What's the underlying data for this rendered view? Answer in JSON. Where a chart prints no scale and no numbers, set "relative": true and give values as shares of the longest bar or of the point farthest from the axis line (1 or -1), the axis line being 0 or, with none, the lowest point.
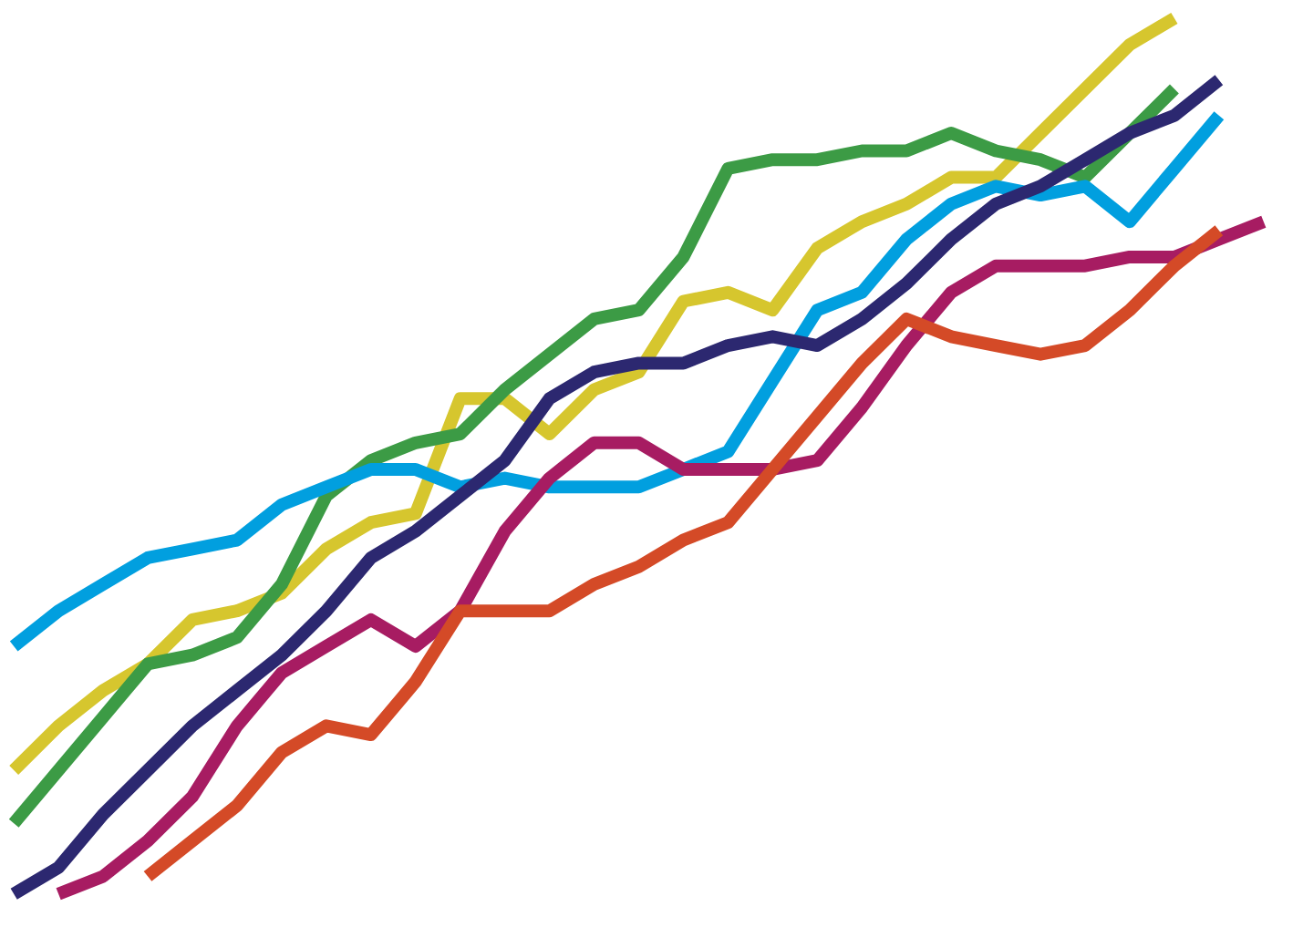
{
  "chart_data": {
    "type": "line",
    "relative": true,
    "grid": false,
    "line_style": "solid",
    "categories": [
      null,
      null,
      null,
      null,
      null,
      null,
      null,
      null,
      null,
      null,
      null,
      null,
      null,
      null,
      null,
      null,
      null,
      null,
      null,
      null,
      null,
      null,
      null,
      null,
      null,
      null,
      null,
      null,
      null
    ],
    "series": [
      {
        "color": "#d6c62e",
        "values": [
          0.15,
          0.2,
          0.24,
          0.27,
          0.32,
          0.33,
          0.35,
          0.4,
          0.43,
          0.44,
          0.57,
          0.57,
          0.53,
          0.58,
          0.6,
          0.68,
          0.69,
          0.67,
          0.74,
          0.77,
          0.79,
          0.82,
          0.82,
          0.87,
          0.92,
          0.97,
          1.0,
          null,
          null
        ]
      },
      {
        "color": "#3c9b45",
        "values": [
          0.09,
          0.15,
          0.21,
          0.27,
          0.28,
          0.3,
          0.36,
          0.46,
          0.5,
          0.52,
          0.53,
          0.58,
          0.62,
          0.66,
          0.67,
          0.73,
          0.83,
          0.84,
          0.84,
          0.85,
          0.85,
          0.87,
          0.85,
          0.84,
          0.82,
          0.87,
          0.92,
          null,
          null
        ]
      },
      {
        "color": "#019fdf",
        "values": [
          0.29,
          0.33,
          0.36,
          0.39,
          0.4,
          0.41,
          0.45,
          0.47,
          0.49,
          0.49,
          0.47,
          0.48,
          0.47,
          0.47,
          0.47,
          0.49,
          0.51,
          0.59,
          0.67,
          0.69,
          0.75,
          0.79,
          0.81,
          0.8,
          0.81,
          0.77,
          0.83,
          0.89,
          null
        ]
      },
      {
        "color": "#2c2870",
        "values": [
          0.01,
          0.04,
          0.1,
          0.15,
          0.2,
          0.24,
          0.28,
          0.33,
          0.39,
          0.42,
          0.46,
          0.5,
          0.57,
          0.6,
          0.61,
          0.61,
          0.63,
          0.64,
          0.63,
          0.66,
          0.7,
          0.75,
          0.79,
          0.81,
          0.84,
          0.87,
          0.89,
          0.93,
          null
        ]
      },
      {
        "color": "#a71c62",
        "values": [
          null,
          0.01,
          0.03,
          0.07,
          0.12,
          0.2,
          0.26,
          0.29,
          0.32,
          0.29,
          0.33,
          0.42,
          0.48,
          0.52,
          0.52,
          0.49,
          0.49,
          0.49,
          0.5,
          0.56,
          0.63,
          0.69,
          0.72,
          0.72,
          0.72,
          0.73,
          0.73,
          0.75,
          0.77
        ]
      },
      {
        "color": "#d44a27",
        "values": [
          null,
          null,
          null,
          0.03,
          0.07,
          0.11,
          0.17,
          0.2,
          0.19,
          0.25,
          0.33,
          0.33,
          0.33,
          0.36,
          0.38,
          0.41,
          0.43,
          0.49,
          0.55,
          0.61,
          0.66,
          0.64,
          0.63,
          0.62,
          0.63,
          0.67,
          0.72,
          0.76,
          null
        ]
      }
    ]
  }
}
